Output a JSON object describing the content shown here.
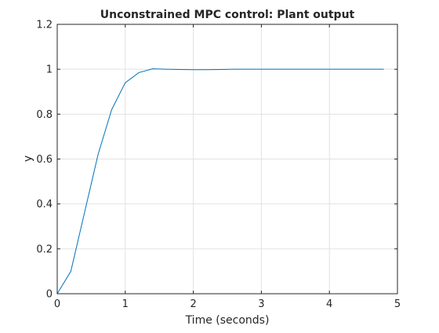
{
  "chart_data": {
    "type": "line",
    "title": "Unconstrained MPC control: Plant output",
    "xlabel": "Time (seconds)",
    "ylabel": "y",
    "xlim": [
      0,
      5
    ],
    "ylim": [
      0,
      1.2
    ],
    "xticks": [
      0,
      1,
      2,
      3,
      4,
      5
    ],
    "xtick_labels": [
      "0",
      "1",
      "2",
      "3",
      "4",
      "5"
    ],
    "yticks": [
      0,
      0.2,
      0.4,
      0.6,
      0.8,
      1,
      1.2
    ],
    "ytick_labels": [
      "0",
      "0.2",
      "0.4",
      "0.6",
      "0.8",
      "1",
      "1.2"
    ],
    "grid": true,
    "series": [
      {
        "color": "#0072BD",
        "x": [
          0,
          0.2,
          0.4,
          0.6,
          0.8,
          1.0,
          1.2,
          1.4,
          1.6,
          1.8,
          2.0,
          2.2,
          2.4,
          2.6,
          2.8,
          3.0,
          3.2,
          3.4,
          3.6,
          3.8,
          4.0,
          4.2,
          4.4,
          4.6,
          4.8
        ],
        "y": [
          0,
          0.1,
          0.36,
          0.62,
          0.82,
          0.94,
          0.985,
          1.002,
          1.0,
          0.999,
          0.998,
          0.998,
          0.999,
          1.0,
          1.0,
          1.0,
          1.0,
          1.0,
          1.0,
          1.0,
          1.0,
          1.0,
          1.0,
          1.0,
          1.0
        ]
      }
    ]
  }
}
